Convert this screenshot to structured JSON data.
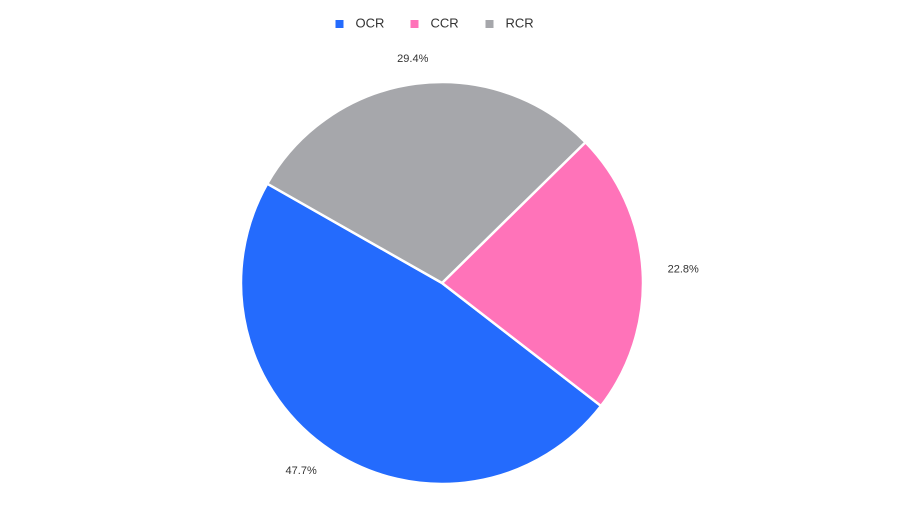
{
  "chart_data": {
    "type": "pie",
    "series": [
      {
        "name": "OCR",
        "color": "#246bfd",
        "values": [
          47.7
        ],
        "value_labels": [
          "47.7%"
        ]
      },
      {
        "name": "CCR",
        "color": "#ff73b9",
        "values": [
          22.8
        ],
        "value_labels": [
          "22.8%"
        ]
      },
      {
        "name": "RCR",
        "color": "#a6a7ab",
        "values": [
          29.4
        ],
        "value_labels": [
          "29.4%"
        ]
      }
    ],
    "legend": "top"
  }
}
